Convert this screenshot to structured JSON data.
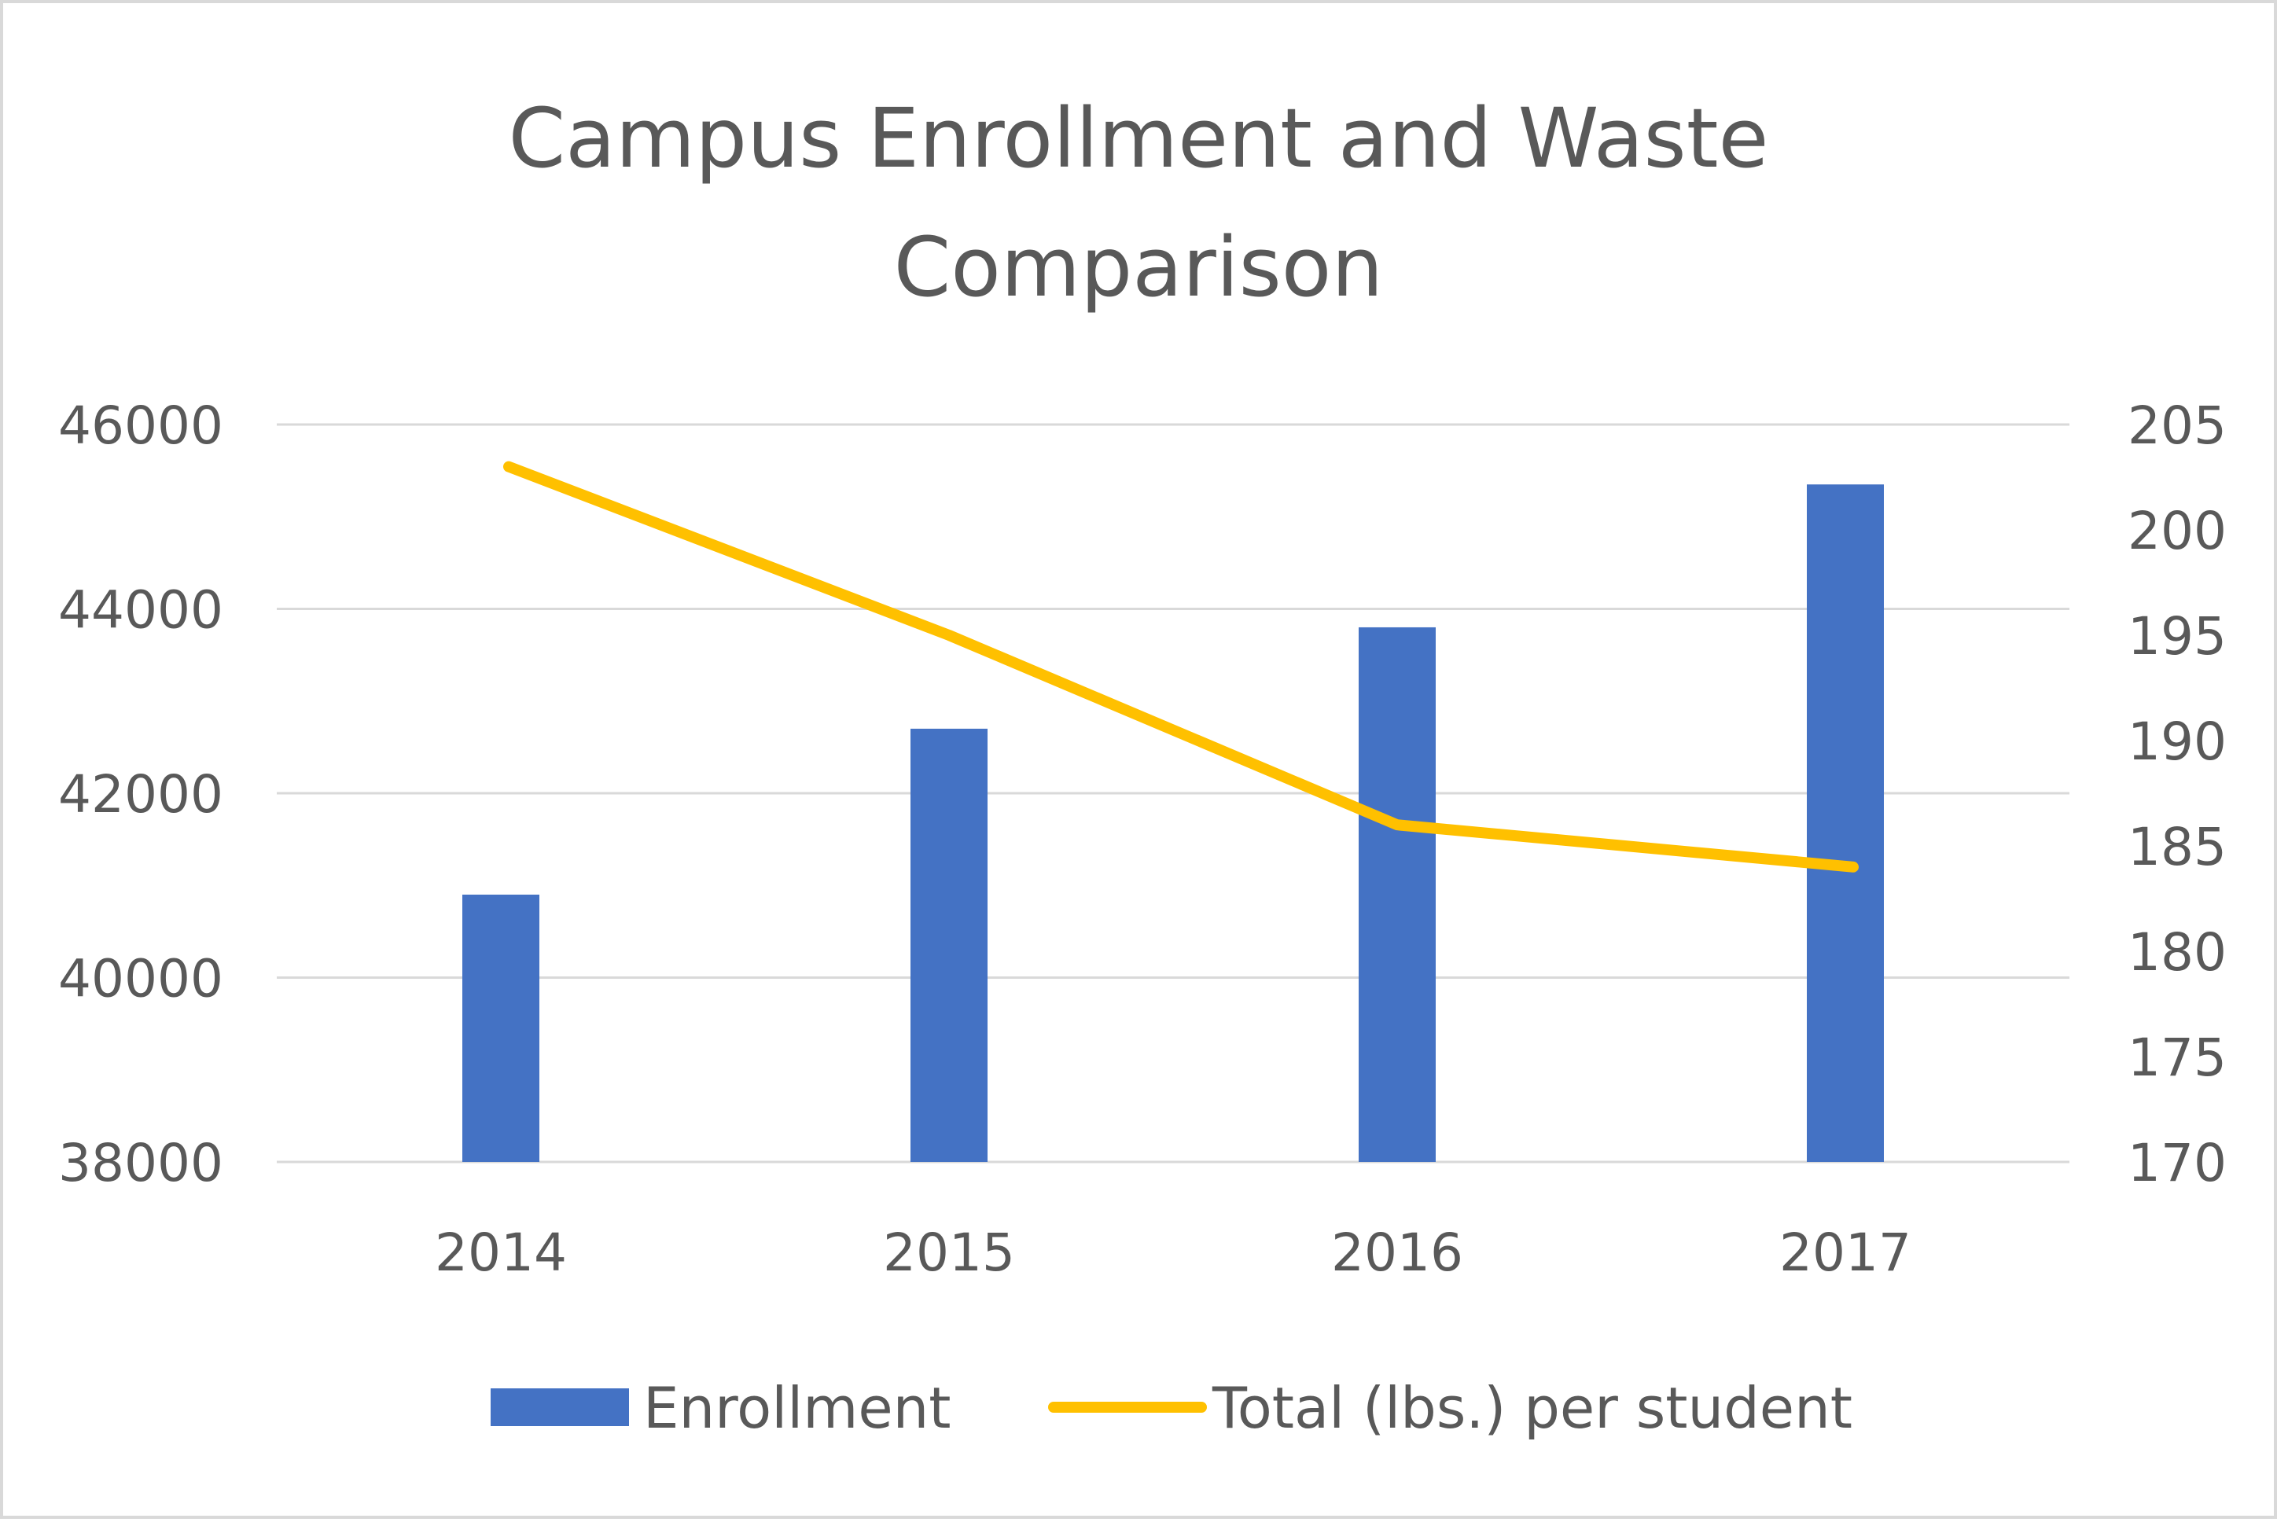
{
  "chart_data": {
    "type": "bar",
    "title": "Campus Enrollment and Waste Comparison",
    "title_lines": [
      "Campus Enrollment and Waste",
      "Comparison"
    ],
    "categories": [
      "2014",
      "2015",
      "2016",
      "2017"
    ],
    "series": [
      {
        "name": "Enrollment",
        "type": "bar",
        "axis": "left",
        "color": "#4472c4",
        "values": [
          40900,
          42700,
          43800,
          45350
        ]
      },
      {
        "name": "Total (lbs.) per student",
        "type": "line",
        "axis": "right",
        "color": "#ffc000",
        "values": [
          203,
          195,
          186,
          184
        ]
      }
    ],
    "y_left": {
      "ylim": [
        38000,
        46000
      ],
      "ticks": [
        "38000",
        "40000",
        "42000",
        "44000",
        "46000"
      ]
    },
    "y_right": {
      "ylim": [
        170,
        205
      ],
      "ticks": [
        "170",
        "175",
        "180",
        "185",
        "190",
        "195",
        "200",
        "205"
      ]
    },
    "grid": true,
    "gridline_color": "#d9d9d9",
    "legend_position": "bottom"
  }
}
